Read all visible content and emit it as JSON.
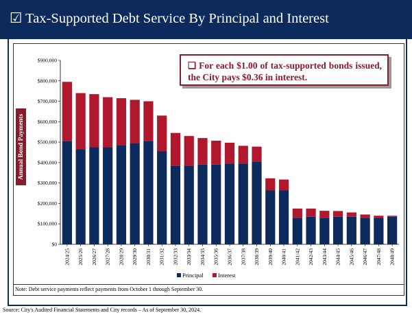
{
  "header": {
    "title": "Tax-Supported Debt Service By Principal and Interest"
  },
  "callout": {
    "text": "For each $1.00 of tax-supported bonds issued, the City pays $0.36 in interest."
  },
  "note": "Note: Debt service payments reflect payments from October 1 through September 30.",
  "source": "Source: City's Audited Financial Statements and City records – As of September 30, 2024.",
  "colors": {
    "banner": "#0d2a5c",
    "principal": "#0d2a5c",
    "interest": "#b0192d",
    "accent": "#8b1a2b"
  },
  "chart_data": {
    "type": "bar",
    "stacked": true,
    "ylabel": "Annual Bond Payments",
    "xlabel": "",
    "ylim": [
      0,
      900000
    ],
    "yticks": [
      0,
      100000,
      200000,
      300000,
      400000,
      500000,
      600000,
      700000,
      800000,
      900000
    ],
    "ytick_labels": [
      "$0",
      "$100,000",
      "$200,000",
      "$300,000",
      "$400,000",
      "$500,000",
      "$600,000",
      "$700,000",
      "$800,000",
      "$900,000"
    ],
    "grid": false,
    "legend": "bottom",
    "categories": [
      "2024/25",
      "2025/26",
      "2026/27",
      "2027/28",
      "2028/29",
      "2029/30",
      "2030/31",
      "2031/32",
      "2032/33",
      "2033/34",
      "2034/35",
      "2035/36",
      "2036/37",
      "2037/38",
      "2038/39",
      "2039/40",
      "2040/41",
      "2041/42",
      "2042/43",
      "2043/44",
      "2044/45",
      "2045/46",
      "2046/47",
      "2047/48",
      "2048/49"
    ],
    "series": [
      {
        "name": "Principal",
        "values": [
          505000,
          465000,
          475000,
          475000,
          485000,
          495000,
          505000,
          455000,
          385000,
          385000,
          390000,
          390000,
          395000,
          395000,
          405000,
          265000,
          265000,
          130000,
          135000,
          130000,
          135000,
          135000,
          130000,
          130000,
          135000
        ]
      },
      {
        "name": "Interest",
        "values": [
          290000,
          275000,
          260000,
          245000,
          230000,
          212000,
          195000,
          175000,
          160000,
          145000,
          130000,
          117000,
          102000,
          87000,
          73000,
          58000,
          52000,
          45000,
          40000,
          34000,
          28000,
          21000,
          16000,
          10000,
          5000
        ]
      }
    ]
  }
}
